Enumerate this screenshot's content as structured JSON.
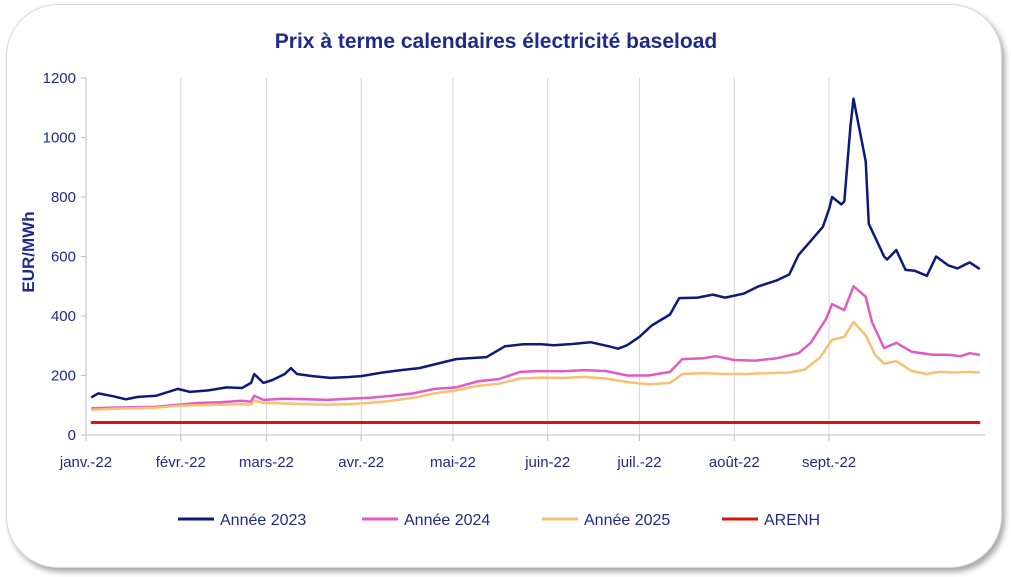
{
  "chart_data": {
    "type": "line",
    "title": "Prix à terme calendaires électricité baseload",
    "ylabel": "EUR/MWh",
    "xlabel": "",
    "ylim": [
      0,
      1200
    ],
    "yticks": [
      0,
      200,
      400,
      600,
      800,
      1000,
      1200
    ],
    "x_months": [
      "janv.-22",
      "févr.-22",
      "mars-22",
      "avr.-22",
      "mai-22",
      "juin-22",
      "juil.-22",
      "août-22",
      "sept.-22"
    ],
    "grid": "vertical",
    "legend_position": "bottom",
    "series": [
      {
        "name": "Année 2023",
        "color": "#0c1a7a",
        "points": [
          [
            "2022-01-03",
            128
          ],
          [
            "2022-01-05",
            140
          ],
          [
            "2022-01-10",
            130
          ],
          [
            "2022-01-14",
            120
          ],
          [
            "2022-01-18",
            128
          ],
          [
            "2022-01-24",
            132
          ],
          [
            "2022-01-31",
            155
          ],
          [
            "2022-02-04",
            145
          ],
          [
            "2022-02-10",
            150
          ],
          [
            "2022-02-16",
            160
          ],
          [
            "2022-02-21",
            158
          ],
          [
            "2022-02-24",
            175
          ],
          [
            "2022-02-25",
            205
          ],
          [
            "2022-02-28",
            175
          ],
          [
            "2022-03-03",
            185
          ],
          [
            "2022-03-07",
            205
          ],
          [
            "2022-03-09",
            225
          ],
          [
            "2022-03-11",
            205
          ],
          [
            "2022-03-16",
            198
          ],
          [
            "2022-03-22",
            192
          ],
          [
            "2022-03-28",
            195
          ],
          [
            "2022-04-01",
            198
          ],
          [
            "2022-04-08",
            210
          ],
          [
            "2022-04-14",
            218
          ],
          [
            "2022-04-20",
            225
          ],
          [
            "2022-04-26",
            240
          ],
          [
            "2022-05-02",
            255
          ],
          [
            "2022-05-06",
            258
          ],
          [
            "2022-05-12",
            262
          ],
          [
            "2022-05-18",
            298
          ],
          [
            "2022-05-24",
            305
          ],
          [
            "2022-05-30",
            305
          ],
          [
            "2022-06-03",
            302
          ],
          [
            "2022-06-09",
            306
          ],
          [
            "2022-06-15",
            312
          ],
          [
            "2022-06-21",
            298
          ],
          [
            "2022-06-24",
            290
          ],
          [
            "2022-06-27",
            302
          ],
          [
            "2022-07-01",
            330
          ],
          [
            "2022-07-05",
            368
          ],
          [
            "2022-07-11",
            405
          ],
          [
            "2022-07-14",
            460
          ],
          [
            "2022-07-20",
            462
          ],
          [
            "2022-07-25",
            472
          ],
          [
            "2022-07-29",
            462
          ],
          [
            "2022-08-04",
            475
          ],
          [
            "2022-08-09",
            500
          ],
          [
            "2022-08-15",
            520
          ],
          [
            "2022-08-19",
            540
          ],
          [
            "2022-08-22",
            605
          ],
          [
            "2022-08-25",
            640
          ],
          [
            "2022-08-30",
            700
          ],
          [
            "2022-09-01",
            760
          ],
          [
            "2022-09-02",
            800
          ],
          [
            "2022-09-05",
            775
          ],
          [
            "2022-09-06",
            785
          ],
          [
            "2022-09-08",
            1040
          ],
          [
            "2022-09-09",
            1130
          ],
          [
            "2022-09-13",
            920
          ],
          [
            "2022-09-14",
            710
          ],
          [
            "2022-09-19",
            600
          ],
          [
            "2022-09-20",
            590
          ],
          [
            "2022-09-23",
            622
          ],
          [
            "2022-09-26",
            555
          ],
          [
            "2022-09-29",
            552
          ],
          [
            "2022-10-03",
            535
          ],
          [
            "2022-10-06",
            600
          ],
          [
            "2022-10-10",
            570
          ],
          [
            "2022-10-13",
            560
          ],
          [
            "2022-10-17",
            580
          ],
          [
            "2022-10-20",
            560
          ]
        ]
      },
      {
        "name": "Année 2024",
        "color": "#e05cc0",
        "points": [
          [
            "2022-01-03",
            90
          ],
          [
            "2022-01-10",
            92
          ],
          [
            "2022-01-17",
            93
          ],
          [
            "2022-01-24",
            95
          ],
          [
            "2022-01-31",
            102
          ],
          [
            "2022-02-07",
            108
          ],
          [
            "2022-02-14",
            110
          ],
          [
            "2022-02-21",
            115
          ],
          [
            "2022-02-24",
            112
          ],
          [
            "2022-02-25",
            132
          ],
          [
            "2022-02-28",
            118
          ],
          [
            "2022-03-07",
            122
          ],
          [
            "2022-03-14",
            120
          ],
          [
            "2022-03-21",
            118
          ],
          [
            "2022-03-28",
            122
          ],
          [
            "2022-04-04",
            125
          ],
          [
            "2022-04-11",
            132
          ],
          [
            "2022-04-18",
            140
          ],
          [
            "2022-04-25",
            155
          ],
          [
            "2022-05-02",
            160
          ],
          [
            "2022-05-09",
            180
          ],
          [
            "2022-05-16",
            188
          ],
          [
            "2022-05-23",
            212
          ],
          [
            "2022-05-30",
            215
          ],
          [
            "2022-06-06",
            214
          ],
          [
            "2022-06-13",
            218
          ],
          [
            "2022-06-20",
            215
          ],
          [
            "2022-06-27",
            200
          ],
          [
            "2022-07-04",
            200
          ],
          [
            "2022-07-11",
            212
          ],
          [
            "2022-07-15",
            255
          ],
          [
            "2022-07-22",
            258
          ],
          [
            "2022-07-26",
            265
          ],
          [
            "2022-08-01",
            252
          ],
          [
            "2022-08-08",
            250
          ],
          [
            "2022-08-15",
            258
          ],
          [
            "2022-08-22",
            275
          ],
          [
            "2022-08-26",
            310
          ],
          [
            "2022-08-31",
            390
          ],
          [
            "2022-09-02",
            440
          ],
          [
            "2022-09-06",
            420
          ],
          [
            "2022-09-09",
            500
          ],
          [
            "2022-09-13",
            465
          ],
          [
            "2022-09-15",
            380
          ],
          [
            "2022-09-19",
            292
          ],
          [
            "2022-09-23",
            310
          ],
          [
            "2022-09-28",
            280
          ],
          [
            "2022-10-05",
            270
          ],
          [
            "2022-10-10",
            270
          ],
          [
            "2022-10-14",
            265
          ],
          [
            "2022-10-17",
            275
          ],
          [
            "2022-10-20",
            270
          ]
        ]
      },
      {
        "name": "Année 2025",
        "color": "#f7c074",
        "points": [
          [
            "2022-01-03",
            85
          ],
          [
            "2022-01-10",
            88
          ],
          [
            "2022-01-17",
            90
          ],
          [
            "2022-01-24",
            92
          ],
          [
            "2022-01-31",
            98
          ],
          [
            "2022-02-07",
            100
          ],
          [
            "2022-02-14",
            102
          ],
          [
            "2022-02-21",
            104
          ],
          [
            "2022-02-24",
            102
          ],
          [
            "2022-02-25",
            115
          ],
          [
            "2022-02-28",
            108
          ],
          [
            "2022-03-07",
            106
          ],
          [
            "2022-03-14",
            104
          ],
          [
            "2022-03-21",
            102
          ],
          [
            "2022-03-28",
            104
          ],
          [
            "2022-04-04",
            108
          ],
          [
            "2022-04-11",
            115
          ],
          [
            "2022-04-18",
            125
          ],
          [
            "2022-04-25",
            140
          ],
          [
            "2022-05-02",
            150
          ],
          [
            "2022-05-09",
            165
          ],
          [
            "2022-05-16",
            172
          ],
          [
            "2022-05-23",
            190
          ],
          [
            "2022-05-30",
            193
          ],
          [
            "2022-06-06",
            192
          ],
          [
            "2022-06-13",
            195
          ],
          [
            "2022-06-20",
            190
          ],
          [
            "2022-06-27",
            178
          ],
          [
            "2022-07-04",
            170
          ],
          [
            "2022-07-11",
            175
          ],
          [
            "2022-07-15",
            205
          ],
          [
            "2022-07-22",
            208
          ],
          [
            "2022-07-29",
            205
          ],
          [
            "2022-08-05",
            205
          ],
          [
            "2022-08-12",
            208
          ],
          [
            "2022-08-19",
            210
          ],
          [
            "2022-08-24",
            220
          ],
          [
            "2022-08-29",
            260
          ],
          [
            "2022-09-02",
            320
          ],
          [
            "2022-09-06",
            330
          ],
          [
            "2022-09-09",
            380
          ],
          [
            "2022-09-13",
            335
          ],
          [
            "2022-09-16",
            270
          ],
          [
            "2022-09-19",
            240
          ],
          [
            "2022-09-23",
            248
          ],
          [
            "2022-09-28",
            215
          ],
          [
            "2022-10-03",
            205
          ],
          [
            "2022-10-07",
            212
          ],
          [
            "2022-10-12",
            210
          ],
          [
            "2022-10-17",
            212
          ],
          [
            "2022-10-20",
            210
          ]
        ]
      },
      {
        "name": "ARENH",
        "color": "#e01010",
        "points": [
          [
            "2022-01-03",
            42
          ],
          [
            "2022-10-20",
            42
          ]
        ]
      }
    ]
  }
}
